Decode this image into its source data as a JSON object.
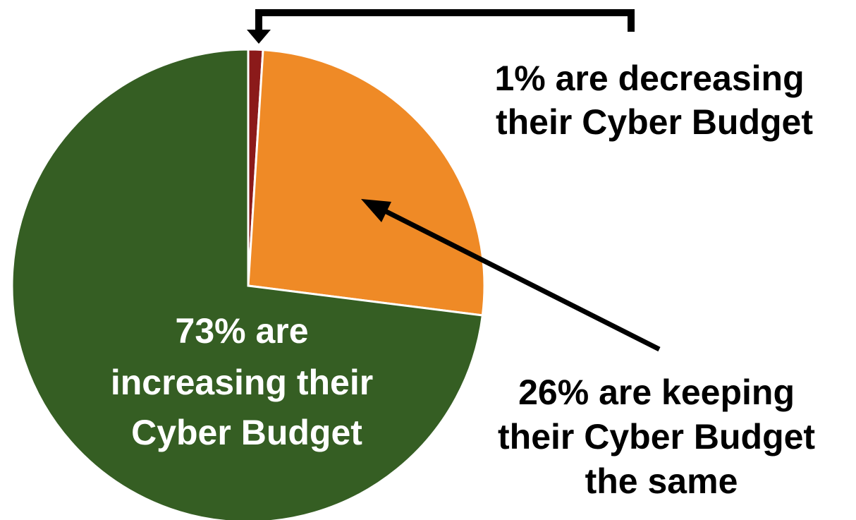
{
  "chart_data": {
    "type": "pie",
    "title": "",
    "start_angle_deg": 0,
    "direction": "clockwise",
    "slices": [
      {
        "name": "decreasing",
        "value": 1,
        "color": "#8b1a1a",
        "label_lines": [
          "1% are decreasing",
          "their Cyber Budget"
        ]
      },
      {
        "name": "same",
        "value": 26,
        "color": "#ef8a26",
        "label_lines": [
          "26% are keeping",
          "their Cyber Budget",
          "the same"
        ]
      },
      {
        "name": "increasing",
        "value": 73,
        "color": "#355e23",
        "label_lines": [
          "73% are",
          "increasing their",
          "Cyber Budget"
        ]
      }
    ],
    "label_colors": {
      "inside": "#ffffff",
      "outside": "#000000"
    },
    "annotation_arrow_color": "#000000"
  }
}
